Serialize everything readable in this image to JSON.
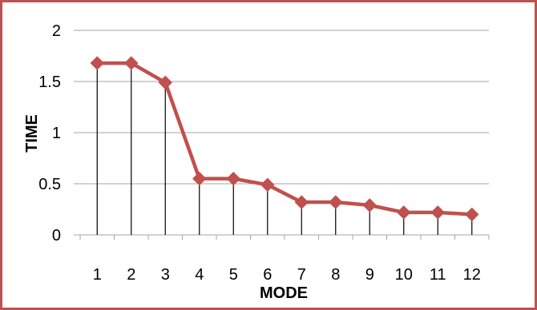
{
  "chart_data": {
    "type": "line",
    "title": "",
    "xlabel": "MODE",
    "ylabel": "TIME",
    "categories": [
      "1",
      "2",
      "3",
      "4",
      "5",
      "6",
      "7",
      "8",
      "9",
      "10",
      "11",
      "12"
    ],
    "series": [
      {
        "values": [
          1.68,
          1.68,
          1.49,
          0.55,
          0.55,
          0.49,
          0.32,
          0.32,
          0.29,
          0.22,
          0.22,
          0.2
        ]
      }
    ],
    "ylim": [
      0,
      2
    ],
    "yticks": [
      "0",
      "0.5",
      "1",
      "1.5",
      "2"
    ],
    "grid": true,
    "drop_lines": true,
    "legend": "none",
    "marker": "diamond",
    "colors": {
      "series": "#c0504d",
      "frame": "#c0504d",
      "grid": "#a6a6a6",
      "drop_line": "#000000"
    }
  }
}
